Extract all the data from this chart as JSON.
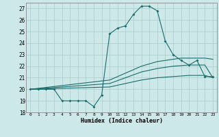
{
  "xlabel": "Humidex (Indice chaleur)",
  "xlim": [
    -0.5,
    23.5
  ],
  "ylim": [
    18,
    27.5
  ],
  "yticks": [
    18,
    19,
    20,
    21,
    22,
    23,
    24,
    25,
    26,
    27
  ],
  "xticks": [
    0,
    1,
    2,
    3,
    4,
    5,
    6,
    7,
    8,
    9,
    10,
    11,
    12,
    13,
    14,
    15,
    16,
    17,
    18,
    19,
    20,
    21,
    22,
    23
  ],
  "bg_color": "#cce8e8",
  "grid_color": "#aacccc",
  "line_color": "#1a6b6b",
  "line1_x": [
    0,
    1,
    2,
    3,
    4,
    5,
    6,
    7,
    8,
    9,
    10,
    11,
    12,
    13,
    14,
    15,
    16,
    17,
    18,
    19,
    20,
    21,
    22,
    23
  ],
  "line1_y": [
    20,
    20,
    20,
    20,
    19,
    19,
    19,
    19,
    18.5,
    19.5,
    24.8,
    25.3,
    25.5,
    26.5,
    27.2,
    27.2,
    26.8,
    24.2,
    23.0,
    22.5,
    22.1,
    22.5,
    21.1,
    21.1
  ],
  "line2_x": [
    0,
    10,
    11,
    12,
    13,
    14,
    15,
    16,
    17,
    18,
    19,
    20,
    21,
    22,
    23
  ],
  "line2_y": [
    20,
    20.8,
    21.1,
    21.4,
    21.7,
    22.0,
    22.2,
    22.4,
    22.5,
    22.6,
    22.7,
    22.7,
    22.7,
    22.7,
    22.6
  ],
  "line3_x": [
    0,
    10,
    11,
    12,
    13,
    14,
    15,
    16,
    17,
    18,
    19,
    20,
    21,
    22,
    23
  ],
  "line3_y": [
    20,
    20.5,
    20.75,
    21.0,
    21.25,
    21.5,
    21.65,
    21.8,
    21.9,
    22.0,
    22.05,
    22.1,
    22.1,
    22.1,
    21.0
  ],
  "line4_x": [
    0,
    10,
    11,
    12,
    13,
    14,
    15,
    16,
    17,
    18,
    19,
    20,
    21,
    22,
    23
  ],
  "line4_y": [
    20,
    20.2,
    20.35,
    20.5,
    20.65,
    20.8,
    20.9,
    21.0,
    21.05,
    21.1,
    21.15,
    21.2,
    21.2,
    21.2,
    21.0
  ]
}
